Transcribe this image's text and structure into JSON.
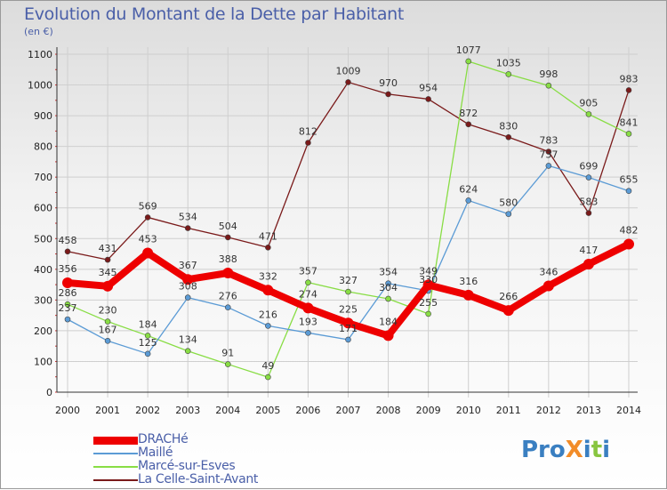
{
  "title": "Evolution du Montant de la Dette par Habitant",
  "unit_label": "(en €)",
  "logo_text": "ProXiti",
  "chart_data": {
    "type": "line",
    "title": "Evolution du Montant de la Dette par Habitant",
    "subtitle": "(en €)",
    "x": [
      "2000",
      "2001",
      "2002",
      "2003",
      "2004",
      "2005",
      "2006",
      "2007",
      "2008",
      "2009",
      "2010",
      "2011",
      "2012",
      "2013",
      "2014"
    ],
    "ylim": [
      0,
      1100
    ],
    "yticks": [
      0,
      100,
      200,
      300,
      400,
      500,
      600,
      700,
      800,
      900,
      1000,
      1100
    ],
    "grid": true,
    "legend_position": "bottom-left",
    "series": [
      {
        "name": "DRACHé",
        "color": "#ee0000",
        "width": "thick",
        "values": [
          356,
          345,
          453,
          367,
          388,
          332,
          274,
          225,
          184,
          349,
          316,
          266,
          346,
          417,
          482
        ],
        "labels": [
          "356",
          "345",
          "453",
          "367",
          "388",
          "332",
          "274",
          "225",
          "184",
          "349",
          "316",
          "266",
          "346",
          "417",
          "482"
        ]
      },
      {
        "name": "Maillé",
        "color": "#5b9bd5",
        "width": "thin",
        "values": [
          237,
          167,
          125,
          308,
          276,
          216,
          193,
          171,
          354,
          330,
          624,
          580,
          737,
          699,
          655
        ],
        "labels": [
          "237",
          "167",
          "125",
          "308",
          "276",
          "216",
          "193",
          "171",
          "354",
          "330",
          "624",
          "580",
          "737",
          "699",
          "655"
        ]
      },
      {
        "name": "Marcé-sur-Esves",
        "color": "#88dd44",
        "width": "thin",
        "values": [
          286,
          230,
          184,
          134,
          91,
          49,
          357,
          327,
          304,
          255,
          1077,
          1035,
          998,
          905,
          841
        ],
        "labels": [
          "286",
          "230",
          "184",
          "134",
          "91",
          "49",
          "357",
          "327",
          "304",
          "255",
          "1077",
          "1035",
          "998",
          "905",
          "841"
        ]
      },
      {
        "name": "La Celle-Saint-Avant",
        "color": "#7a1a1a",
        "width": "thin",
        "values": [
          458,
          431,
          569,
          534,
          504,
          471,
          812,
          1009,
          970,
          954,
          872,
          830,
          783,
          583,
          983
        ],
        "labels": [
          "458",
          "431",
          "569",
          "534",
          "504",
          "471",
          "812",
          "1009",
          "970",
          "954",
          "872",
          "830",
          "783",
          "583",
          "983"
        ]
      }
    ]
  }
}
